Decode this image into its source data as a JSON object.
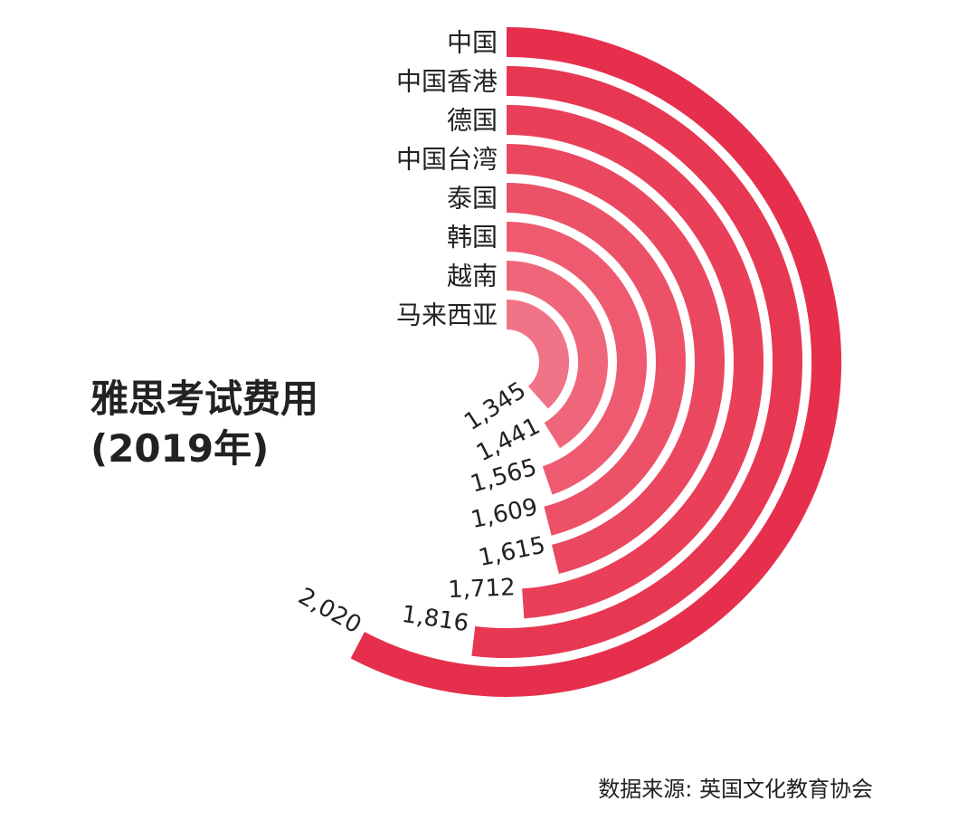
{
  "chart_data": {
    "type": "radial-bar",
    "title": "雅思考试费用",
    "subtitle": "(2019年)",
    "categories": [
      "中国",
      "中国香港",
      "德国",
      "中国台湾",
      "泰国",
      "韩国",
      "越南",
      "马来西亚"
    ],
    "values": [
      2020,
      1816,
      1712,
      1615,
      1609,
      1565,
      1441,
      1345
    ],
    "value_labels": [
      "2,020",
      "1,816",
      "1,712",
      "1,615",
      "1,609",
      "1,565",
      "1,441",
      "1,345"
    ],
    "colors": [
      "#e62f4c",
      "#e73752",
      "#e93f59",
      "#ea4860",
      "#ec5168",
      "#ee5b71",
      "#ef667b",
      "#f17387"
    ],
    "ylim": [
      0,
      3500
    ],
    "source": "数据来源: 英国文化教育协会"
  }
}
